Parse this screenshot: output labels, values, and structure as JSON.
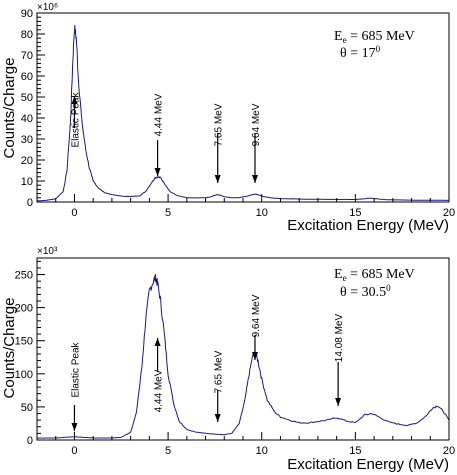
{
  "chart_data": [
    {
      "type": "line",
      "xlabel": "Excitation Energy (MeV)",
      "ylabel": "Counts/Charge",
      "y_multiplier": "×10⁶",
      "xlim": [
        -2,
        20
      ],
      "ylim": [
        0,
        90
      ],
      "x_ticks": [
        "0",
        "5",
        "10",
        "15",
        "20"
      ],
      "y_ticks": [
        "0",
        "10",
        "20",
        "30",
        "40",
        "50",
        "60",
        "70",
        "80",
        "90"
      ],
      "info_line1_sym": "E",
      "info_line1_sub": "e",
      "info_line1_rest": " = 685 MeV",
      "info_line2_sym": "θ",
      "info_line2_rest": " = 17",
      "info_line2_sup": "0",
      "annotations": [
        {
          "label": "Elastic Peak",
          "x": 0.0
        },
        {
          "label": "4.44 MeV",
          "x": 4.44
        },
        {
          "label": "7.65 MeV",
          "x": 7.65
        },
        {
          "label": "9.64 MeV",
          "x": 9.64
        }
      ],
      "series": [
        {
          "x": [
            -2,
            -1.5,
            -1,
            -0.6,
            -0.4,
            -0.2,
            -0.1,
            0,
            0.1,
            0.2,
            0.4,
            0.6,
            0.8,
            1,
            1.3,
            1.6,
            2,
            2.5,
            3,
            3.5,
            3.8,
            4.1,
            4.3,
            4.44,
            4.6,
            4.8,
            5.1,
            5.5,
            6,
            6.5,
            7,
            7.3,
            7.5,
            7.65,
            7.8,
            8,
            8.4,
            8.8,
            9.2,
            9.5,
            9.64,
            9.8,
            10.1,
            10.5,
            11,
            12,
            13,
            14,
            15,
            15.8,
            16.5,
            17,
            18,
            19,
            20
          ],
          "y": [
            0.5,
            0.8,
            1.5,
            5,
            15,
            40,
            65,
            83,
            78,
            60,
            38,
            25,
            16,
            10,
            6.5,
            4.5,
            3.5,
            2.8,
            2.6,
            3,
            5,
            9,
            11.5,
            12,
            11.5,
            9,
            5,
            3,
            2,
            1.9,
            2,
            2.5,
            3.2,
            3.5,
            3.2,
            2.5,
            2,
            2.1,
            2.8,
            3.5,
            3.8,
            3.5,
            2.5,
            2,
            1.6,
            1.4,
            1.3,
            1.2,
            1.2,
            1.8,
            1.2,
            1,
            0.9,
            0.8,
            0.8
          ]
        }
      ]
    },
    {
      "type": "line",
      "xlabel": "Excitation Energy (MeV)",
      "ylabel": "Counts/Charge",
      "y_multiplier": "×10³",
      "xlim": [
        -2,
        20
      ],
      "ylim": [
        0,
        275
      ],
      "x_ticks": [
        "0",
        "5",
        "10",
        "15",
        "20"
      ],
      "y_ticks": [
        "0",
        "50",
        "100",
        "150",
        "200",
        "250"
      ],
      "info_line1_sym": "E",
      "info_line1_sub": "e",
      "info_line1_rest": " = 685 MeV",
      "info_line2_sym": "θ",
      "info_line2_rest": " = 30.5",
      "info_line2_sup": "0",
      "annotations": [
        {
          "label": "Elastic Peak",
          "x": 0.0
        },
        {
          "label": "4.44 MeV",
          "x": 4.44
        },
        {
          "label": "7.65 MeV",
          "x": 7.65
        },
        {
          "label": "9.64 MeV",
          "x": 9.64
        },
        {
          "label": "14.08 MeV",
          "x": 14.08
        }
      ],
      "series": [
        {
          "x": [
            -2,
            -1,
            -0.5,
            0,
            0.5,
            1,
            1.5,
            2,
            2.5,
            3,
            3.3,
            3.6,
            3.8,
            4,
            4.2,
            4.35,
            4.44,
            4.6,
            4.8,
            5,
            5.3,
            5.6,
            6,
            6.5,
            7,
            7.5,
            8,
            8.4,
            8.8,
            9.1,
            9.3,
            9.5,
            9.64,
            9.8,
            10,
            10.3,
            10.7,
            11,
            11.5,
            12,
            12.5,
            13,
            13.5,
            14,
            14.5,
            15,
            15.5,
            15.9,
            16.3,
            16.8,
            17.3,
            17.8,
            18.3,
            18.8,
            19.1,
            19.4,
            19.7,
            20
          ],
          "y": [
            3,
            3,
            4,
            5,
            4,
            3,
            3,
            3,
            4,
            12,
            40,
            110,
            180,
            225,
            240,
            245,
            236,
            210,
            160,
            100,
            55,
            28,
            16,
            12,
            10,
            9,
            8,
            10,
            25,
            60,
            95,
            125,
            132,
            120,
            92,
            60,
            42,
            35,
            30,
            26,
            26,
            28,
            30,
            34,
            29,
            26,
            38,
            40,
            34,
            27,
            24,
            22,
            26,
            37,
            48,
            52,
            43,
            30
          ]
        }
      ]
    }
  ]
}
